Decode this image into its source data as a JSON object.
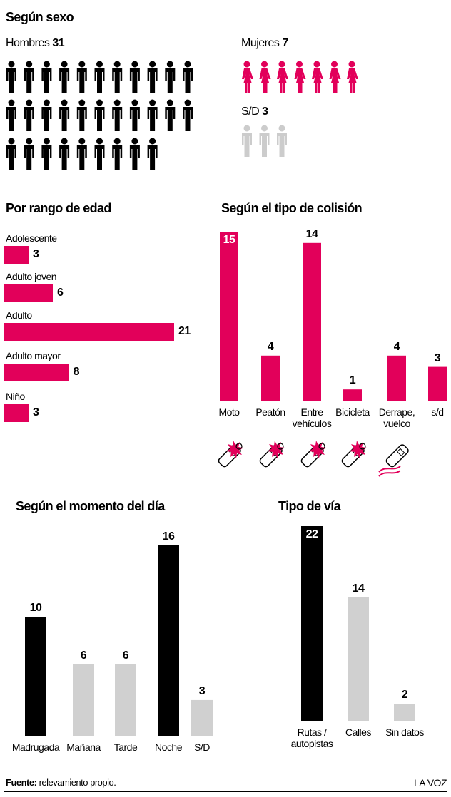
{
  "chart_data": [
    {
      "type": "pictogram",
      "title": "Según sexo",
      "categories": [
        "Hombres",
        "Mujeres",
        "S/D"
      ],
      "values": [
        31,
        7,
        3
      ],
      "colors": [
        "#000000",
        "#e2005a",
        "#cccccc"
      ]
    },
    {
      "type": "hbar",
      "title": "Por rango de edad",
      "categories": [
        "Adolescente",
        "Adulto joven",
        "Adulto",
        "Adulto mayor",
        "Niño"
      ],
      "values": [
        3,
        6,
        21,
        8,
        3
      ],
      "color": "#e2005a"
    },
    {
      "type": "bar",
      "title": "Según el tipo de colisión",
      "categories": [
        "Moto",
        "Peatón",
        "Entre vehículos",
        "Bicicleta",
        "Derrape, vuelco",
        "s/d"
      ],
      "values": [
        15,
        4,
        14,
        1,
        4,
        3
      ],
      "color": "#e2005a"
    },
    {
      "type": "bar",
      "title": "Según el momento del día",
      "categories": [
        "Madrugada",
        "Mañana",
        "Tarde",
        "Noche",
        "S/D"
      ],
      "values": [
        10,
        6,
        6,
        16,
        3
      ],
      "colors": [
        "#000000",
        "#d0d0d0",
        "#d0d0d0",
        "#000000",
        "#d0d0d0"
      ]
    },
    {
      "type": "bar",
      "title": "Tipo de vía",
      "categories": [
        "Rutas / autopistas",
        "Calles",
        "Sin datos"
      ],
      "values": [
        22,
        14,
        2
      ],
      "colors": [
        "#000000",
        "#d0d0d0",
        "#d0d0d0"
      ]
    }
  ],
  "footer": {
    "source_label": "Fuente:",
    "source": "relevamiento propio.",
    "brand": "LA VOZ"
  }
}
